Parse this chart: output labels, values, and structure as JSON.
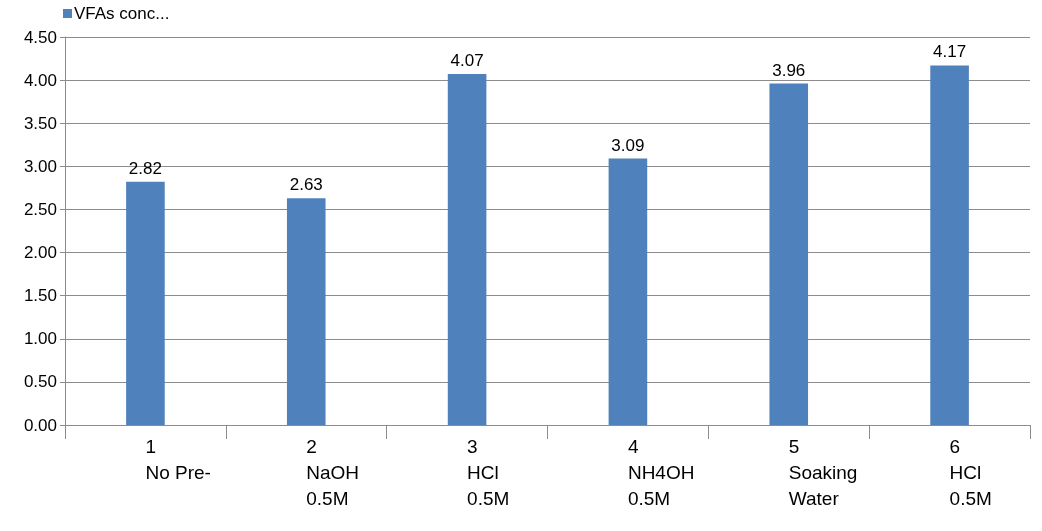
{
  "chart_data": {
    "type": "bar",
    "categories": [
      "1\nNo Pre-",
      "2\nNaOH\n0.5M",
      "3\nHCl\n0.5M",
      "4\nNH4OH\n0.5M",
      "5\nSoaking\nWater",
      "6\nHCl\n0.5M"
    ],
    "series": [
      {
        "name": "VFAs conc...",
        "color": "#4f81bd",
        "values": [
          2.82,
          2.63,
          4.07,
          3.09,
          3.96,
          4.17
        ]
      }
    ],
    "ylim": [
      0,
      4.5
    ],
    "yticks": [
      {
        "value": 0,
        "label": "0.00"
      },
      {
        "value": 0.5,
        "label": "0.50"
      },
      {
        "value": 1,
        "label": "1.00"
      },
      {
        "value": 1.5,
        "label": "1.50"
      },
      {
        "value": 2,
        "label": "2.00"
      },
      {
        "value": 2.5,
        "label": "2.50"
      },
      {
        "value": 3,
        "label": "3.00"
      },
      {
        "value": 3.5,
        "label": "3.50"
      },
      {
        "value": 4,
        "label": "4.00"
      },
      {
        "value": 4.5,
        "label": "4.50"
      }
    ],
    "grid": "y",
    "legend": "top left",
    "data_labels": true
  }
}
